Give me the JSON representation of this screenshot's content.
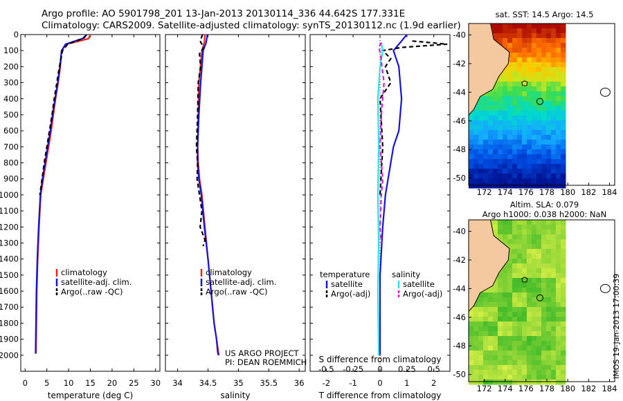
{
  "header": {
    "line1": "Argo profile: AO 5901798_201 13-Jan-2013 20130114_336 44.642S 177.331E",
    "line2": "Climatology: CARS2009. Satellite-adjusted climatology: synTS_20130112.nc (1.9d earlier)"
  },
  "colors": {
    "climatology": "#e8231c",
    "satellite": "#1414d6",
    "argo": "#000000",
    "salinity_satellite": "#2fe0e8",
    "salinity_argo": "#d81ad8",
    "land": "#f5c9a0"
  },
  "chart_data": [
    {
      "type": "line",
      "id": "temperature",
      "xlabel": "temperature (deg C)",
      "ylabel": "",
      "xlim": [
        -1,
        31
      ],
      "ylim": [
        2100,
        0
      ],
      "y_reversed": true,
      "xticks": [
        "0",
        "5",
        "10",
        "15",
        "20",
        "25",
        "30"
      ],
      "yticks": [
        "0",
        "100",
        "200",
        "300",
        "400",
        "500",
        "600",
        "700",
        "800",
        "900",
        "1000",
        "1100",
        "1200",
        "1300",
        "1400",
        "1500",
        "1600",
        "1700",
        "1800",
        "1900",
        "2000"
      ],
      "legend": [
        "climatology",
        "satellite-adj. clim.",
        "Argo(..raw -QC)"
      ],
      "legend_position": "lower-middle",
      "series": [
        {
          "name": "climatology",
          "color": "red",
          "x": [
            15.0,
            14.6,
            12.5,
            9.5,
            8.4,
            8.1,
            7.6,
            7.0,
            6.5,
            6.0,
            5.4,
            4.8,
            4.2,
            3.6,
            3.2,
            2.9,
            2.7,
            2.6,
            2.5
          ],
          "y": [
            0,
            25,
            40,
            60,
            100,
            200,
            300,
            400,
            500,
            600,
            700,
            800,
            900,
            1000,
            1200,
            1400,
            1600,
            1800,
            1990
          ]
        },
        {
          "name": "satellite-adj. clim.",
          "color": "blue",
          "x": [
            14.2,
            13.2,
            11.5,
            9.3,
            8.4,
            8.0,
            7.5,
            6.9,
            6.3,
            5.8,
            5.2,
            4.6,
            4.0,
            3.5,
            3.1,
            2.8,
            2.6,
            2.5,
            2.4
          ],
          "y": [
            0,
            25,
            40,
            60,
            100,
            200,
            300,
            400,
            500,
            600,
            700,
            800,
            900,
            1000,
            1200,
            1400,
            1600,
            1800,
            1990
          ]
        },
        {
          "name": "Argo(..raw -QC)",
          "color": "black",
          "x": [
            14.0,
            13.6,
            11.8,
            9.8,
            8.6,
            7.9,
            7.3,
            6.7,
            6.2,
            5.6,
            5.0,
            4.4,
            3.9,
            3.4
          ],
          "y": [
            5,
            20,
            40,
            60,
            100,
            200,
            300,
            400,
            500,
            600,
            700,
            800,
            900,
            1000
          ]
        }
      ]
    },
    {
      "type": "line",
      "id": "salinity",
      "xlabel": "salinity",
      "xlim": [
        33.8,
        36.1
      ],
      "ylim": [
        2100,
        0
      ],
      "y_reversed": true,
      "xticks": [
        "34",
        "34.5",
        "35",
        "35.5",
        "36"
      ],
      "legend": [
        "climatology",
        "satellite-adj. clim.",
        "Argo(..raw -QC)"
      ],
      "legend_position": "lower-middle",
      "annotations": [
        "US ARGO PROJECT",
        "PI: DEAN ROEMMICH"
      ],
      "series": [
        {
          "name": "climatology",
          "color": "red",
          "x": [
            34.45,
            34.44,
            34.4,
            34.35,
            34.34,
            34.33,
            34.34,
            34.36,
            34.4,
            34.45,
            34.5,
            34.55,
            34.6,
            34.64,
            34.67,
            34.68
          ],
          "y": [
            0,
            50,
            100,
            300,
            500,
            700,
            800,
            900,
            1000,
            1200,
            1400,
            1600,
            1800,
            1900,
            1980,
            2000
          ]
        },
        {
          "name": "satellite-adj. clim.",
          "color": "blue",
          "x": [
            34.49,
            34.47,
            34.42,
            34.38,
            34.35,
            34.33,
            34.33,
            34.35,
            34.39,
            34.44,
            34.5,
            34.55,
            34.6,
            34.64,
            34.66,
            34.67
          ],
          "y": [
            0,
            50,
            100,
            300,
            500,
            700,
            800,
            900,
            1000,
            1200,
            1400,
            1600,
            1800,
            1900,
            1980,
            2000
          ]
        },
        {
          "name": "Argo(..raw -QC)",
          "color": "black",
          "x": [
            34.41,
            34.37,
            34.43,
            34.36,
            34.38,
            34.34,
            34.33,
            34.31,
            34.33,
            34.32,
            34.36,
            34.4,
            34.37,
            34.45,
            34.42
          ],
          "y": [
            0,
            40,
            80,
            120,
            200,
            300,
            500,
            700,
            800,
            900,
            1000,
            1100,
            1200,
            1280,
            1320
          ]
        }
      ]
    },
    {
      "type": "line",
      "id": "difference",
      "xlabel": "T difference from climatology",
      "xlabel_top": "S difference from climatology",
      "xlim": [
        -2.6,
        2.6
      ],
      "ylim": [
        2100,
        0
      ],
      "y_reversed": true,
      "xticks": [
        "-2",
        "-1",
        "0",
        "1",
        "2"
      ],
      "xticks_s": [
        "-0.5",
        "-0.25",
        "0",
        "0.25",
        "0.5"
      ],
      "legend": [
        "temperature",
        "satellite",
        "Argo(-adj)",
        "salinity",
        "satellite",
        "Argo(-adj)"
      ],
      "legend_position": "lower-middle",
      "series": [
        {
          "name": "temperature satellite",
          "color": "blue",
          "x": [
            1.0,
            0.8,
            0.5,
            0.6,
            0.7,
            0.8,
            0.7,
            0.5,
            0.4,
            0.2,
            0.1,
            0.0,
            0.0,
            0.0
          ],
          "y": [
            0,
            40,
            100,
            150,
            200,
            400,
            600,
            700,
            800,
            1000,
            1200,
            1500,
            1800,
            2000
          ]
        },
        {
          "name": "temperature Argo(-adj)",
          "color": "black",
          "x": [
            1.2,
            2.5,
            0.8,
            0.1,
            0.4,
            0.2,
            0.4,
            0.0,
            0.1,
            0.0
          ],
          "y": [
            40,
            60,
            80,
            100,
            150,
            200,
            300,
            400,
            700,
            1000
          ]
        },
        {
          "name": "salinity satellite",
          "color": "cyan",
          "x": [
            0.05,
            0.1,
            0.0,
            -0.08,
            -0.05,
            -0.08,
            -0.05,
            -0.08,
            -0.05
          ],
          "y": [
            50,
            100,
            200,
            400,
            700,
            1000,
            1300,
            1600,
            2000
          ]
        },
        {
          "name": "salinity Argo(-adj)",
          "color": "magenta",
          "x": [
            0.05,
            -0.05,
            0.02,
            0.07,
            0.15,
            0.05,
            0.0,
            0.1,
            0.05,
            0.0,
            0.05
          ],
          "y": [
            50,
            80,
            120,
            200,
            300,
            500,
            700,
            900,
            1000,
            1200,
            1300
          ]
        }
      ]
    },
    {
      "type": "heatmap",
      "id": "sst_map",
      "title": "sat. SST: 14.5 Argo: 14.5",
      "xticks": [
        "172",
        "174",
        "176",
        "178",
        "180",
        "182",
        "184"
      ],
      "yticks": [
        "-40",
        "-42",
        "-44",
        "-46",
        "-48",
        "-50"
      ],
      "xlim": [
        170.5,
        184.5
      ],
      "ylim": [
        -50.5,
        -39.2
      ]
    },
    {
      "type": "heatmap",
      "id": "sla_map",
      "title": "Altim. SLA: 0.079",
      "subtitle": "Argo h1000: 0.038 h2000: NaN",
      "xticks": [
        "172",
        "174",
        "176",
        "178",
        "180",
        "182",
        "184"
      ],
      "yticks": [
        "-40",
        "-42",
        "-44",
        "-46",
        "-48",
        "-50"
      ],
      "xlim": [
        170.5,
        184.5
      ],
      "ylim": [
        -50.5,
        -39.2
      ]
    }
  ],
  "watermark": "IMOS 19-Jan-2013 17:00:39"
}
